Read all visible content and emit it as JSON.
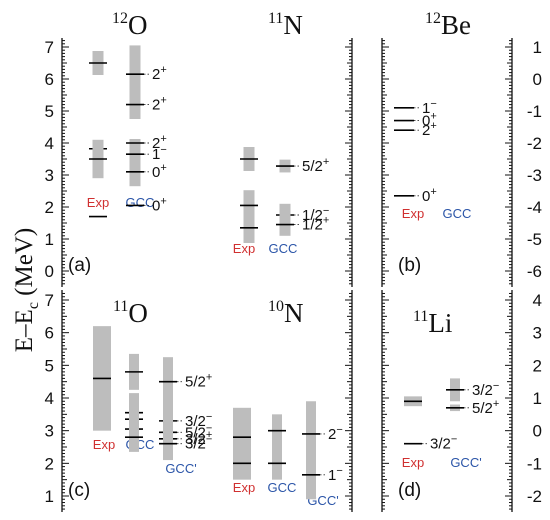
{
  "y_axis_title": {
    "main": "E–E",
    "sub": "c",
    "unit": " (MeV)"
  },
  "colors": {
    "exp": "#d03030",
    "gcc": "#2b55a8",
    "bar": "#bdbdbd",
    "axis": "#111111"
  },
  "chart_data": [
    {
      "type": "level-diagram",
      "panel": "(a)",
      "nuclei": [
        {
          "mass": "12",
          "symbol": "O"
        },
        {
          "mass": "11",
          "symbol": "N"
        }
      ],
      "y_ticks": [
        "0",
        "1",
        "2",
        "3",
        "4",
        "5",
        "6",
        "7"
      ],
      "columns": [
        "Exp",
        "GCC"
      ],
      "levels": [
        {
          "column": "Exp",
          "nucleus": "12O",
          "energy": 6.5,
          "width": 0.75
        },
        {
          "column": "GCC",
          "nucleus": "12O",
          "energy": 6.15,
          "width": 1.8,
          "label": "2",
          "parity": "+"
        },
        {
          "column": "GCC",
          "nucleus": "12O",
          "energy": 5.2,
          "width": 0.9,
          "label": "2",
          "parity": "+"
        },
        {
          "column": "Exp",
          "nucleus": "12O",
          "energy": 3.82,
          "width": 0.2
        },
        {
          "column": "GCC",
          "nucleus": "12O",
          "energy": 4.0,
          "width": 0.25,
          "label": "2",
          "parity": "+"
        },
        {
          "column": "Exp",
          "nucleus": "12O",
          "energy": 3.5,
          "width": 1.2
        },
        {
          "column": "GCC",
          "nucleus": "12O",
          "energy": 3.65,
          "width": 0.55,
          "label": "1",
          "parity": "−"
        },
        {
          "column": "GCC",
          "nucleus": "12O",
          "energy": 3.1,
          "width": 0.9,
          "label": "0",
          "parity": "+"
        },
        {
          "column": "Exp",
          "nucleus": "12O",
          "energy": 1.7,
          "width": 0.02
        },
        {
          "column": "GCC",
          "nucleus": "12O",
          "energy": 2.05,
          "width": 0.02,
          "label": "0",
          "parity": "+"
        },
        {
          "column": "Exp",
          "nucleus": "11N",
          "energy": 3.5,
          "width": 0.75
        },
        {
          "column": "GCC",
          "nucleus": "11N",
          "energy": 3.28,
          "width": 0.4,
          "label": "5/2",
          "parity": "+"
        },
        {
          "column": "Exp",
          "nucleus": "11N",
          "energy": 2.05,
          "width": 0.95
        },
        {
          "column": "Exp",
          "nucleus": "11N",
          "energy": 1.35,
          "width": 0.95
        },
        {
          "column": "GCC",
          "nucleus": "11N",
          "energy": 1.75,
          "width": 0.7,
          "label": "1/2",
          "parity": "−"
        },
        {
          "column": "GCC",
          "nucleus": "11N",
          "energy": 1.45,
          "width": 0.7,
          "label": "1/2",
          "parity": "+"
        }
      ]
    },
    {
      "type": "level-diagram",
      "panel": "(b)",
      "nuclei": [
        {
          "mass": "12",
          "symbol": "Be"
        }
      ],
      "y_ticks": [
        "-6",
        "-5",
        "-4",
        "-3",
        "-2",
        "-1",
        "0",
        "1"
      ],
      "columns": [
        "Exp",
        "GCC"
      ],
      "levels": [
        {
          "column": "Exp",
          "energy": -0.9,
          "label": "1",
          "parity": "−"
        },
        {
          "column": "Exp",
          "energy": -1.3,
          "label": "0",
          "parity": "+"
        },
        {
          "column": "Exp",
          "energy": -1.6,
          "label": "2",
          "parity": "+"
        },
        {
          "column": "Exp",
          "energy": -3.65,
          "label": "0",
          "parity": "+"
        }
      ]
    },
    {
      "type": "level-diagram",
      "panel": "(c)",
      "nuclei": [
        {
          "mass": "11",
          "symbol": "O"
        },
        {
          "mass": "10",
          "symbol": "N"
        }
      ],
      "y_ticks": [
        "1",
        "2",
        "3",
        "4",
        "5",
        "6",
        "7"
      ],
      "columns": [
        "Exp",
        "GCC",
        "GCC'"
      ],
      "levels": [
        {
          "column": "Exp",
          "nucleus": "11O",
          "energy": 4.6,
          "width": 3.2
        },
        {
          "column": "GCC",
          "nucleus": "11O",
          "energy": 4.8,
          "width": 1.1
        },
        {
          "column": "GCC'",
          "nucleus": "11O",
          "energy": 4.5,
          "width": 1.5,
          "label": "5/2",
          "parity": "+"
        },
        {
          "column": "GCC",
          "nucleus": "11O",
          "energy": 3.55,
          "width": 1.2
        },
        {
          "column": "GCC'",
          "nucleus": "11O",
          "energy": 3.3,
          "width": 1.0,
          "label": "3/2",
          "parity": "−"
        },
        {
          "column": "GCC",
          "nucleus": "11O",
          "energy": 3.35,
          "width": 0.9
        },
        {
          "column": "GCC'",
          "nucleus": "11O",
          "energy": 2.95,
          "width": 1.0,
          "label": "5/2",
          "parity": "−"
        },
        {
          "column": "GCC",
          "nucleus": "11O",
          "energy": 3.05,
          "width": 0.9
        },
        {
          "column": "GCC'",
          "nucleus": "11O",
          "energy": 2.75,
          "width": 1.0,
          "label": "3/2",
          "parity": "+"
        },
        {
          "column": "GCC",
          "nucleus": "11O",
          "energy": 2.8,
          "width": 0.9
        },
        {
          "column": "GCC'",
          "nucleus": "11O",
          "energy": 2.6,
          "width": 1.0,
          "label": "3/2",
          "parity": "−"
        },
        {
          "column": "Exp",
          "nucleus": "10N",
          "energy": 2.8,
          "width": 1.8
        },
        {
          "column": "GCC",
          "nucleus": "10N",
          "energy": 3.0,
          "width": 1.0
        },
        {
          "column": "GCC'",
          "nucleus": "10N",
          "energy": 2.9,
          "width": 2.0,
          "label": "2",
          "parity": "−"
        },
        {
          "column": "Exp",
          "nucleus": "10N",
          "energy": 2.0,
          "width": 1.0
        },
        {
          "column": "GCC",
          "nucleus": "10N",
          "energy": 2.0,
          "width": 1.0
        },
        {
          "column": "GCC'",
          "nucleus": "10N",
          "energy": 1.65,
          "width": 1.5,
          "label": "1",
          "parity": "−"
        }
      ]
    },
    {
      "type": "level-diagram",
      "panel": "(d)",
      "nuclei": [
        {
          "mass": "11",
          "symbol": "Li"
        }
      ],
      "y_ticks": [
        "-2",
        "-1",
        "0",
        "1",
        "2",
        "3",
        "4"
      ],
      "columns": [
        "Exp",
        "GCC'"
      ],
      "levels": [
        {
          "column": "Exp",
          "energy": 0.9,
          "width": 0.3
        },
        {
          "column": "GCC'",
          "energy": 1.25,
          "width": 0.7,
          "label": "3/2",
          "parity": "−"
        },
        {
          "column": "GCC'",
          "energy": 0.7,
          "width": 0.2,
          "label": "5/2",
          "parity": "+"
        },
        {
          "column": "Exp",
          "energy": -0.4,
          "width": 0.02,
          "label": "3/2",
          "parity": "−"
        }
      ]
    }
  ]
}
